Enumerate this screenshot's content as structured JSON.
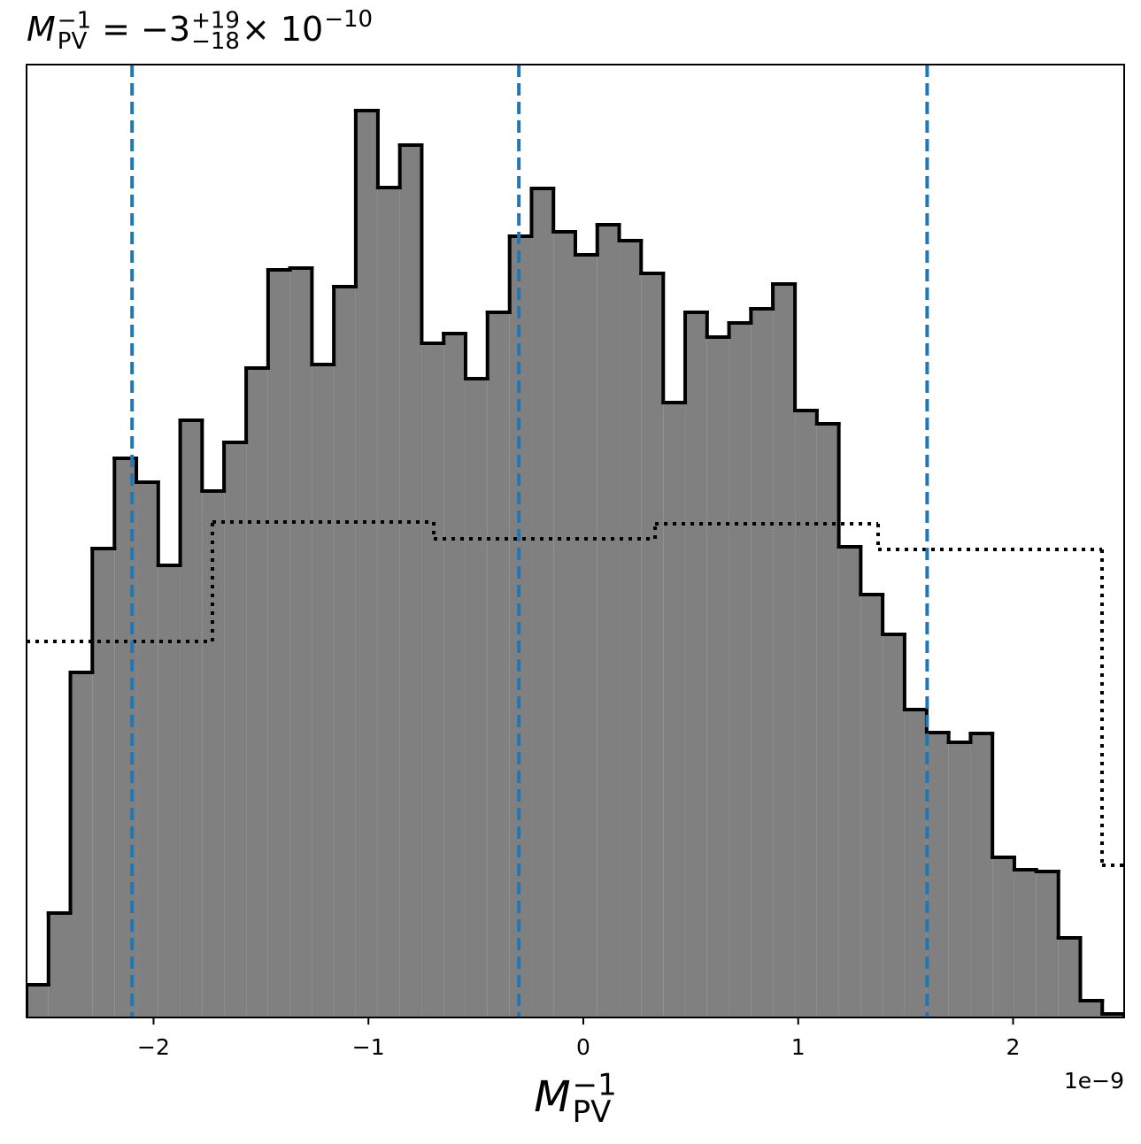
{
  "chart_data": {
    "type": "histogram",
    "title": {
      "symbol": "M",
      "sub": "PV",
      "sup": "−1",
      "value": "= −3",
      "upper": "+19",
      "lower": "−18",
      "times": "× 10",
      "exponent": "−10"
    },
    "xlabel": {
      "symbol": "M",
      "sub": "PV",
      "sup": "−1"
    },
    "x_offset_label": "1e−9",
    "bins": [
      -2.591,
      -2.489,
      -2.387,
      -2.285,
      -2.182,
      -2.08,
      -1.978,
      -1.876,
      -1.774,
      -1.672,
      -1.569,
      -1.467,
      -1.365,
      -1.263,
      -1.161,
      -1.059,
      -0.956,
      -0.854,
      -0.752,
      -0.65,
      -0.548,
      -0.446,
      -0.343,
      -0.241,
      -0.139,
      -0.037,
      0.065,
      0.167,
      0.269,
      0.372,
      0.474,
      0.576,
      0.678,
      0.78,
      0.882,
      0.985,
      1.087,
      1.189,
      1.291,
      1.393,
      1.495,
      1.598,
      1.7,
      1.802,
      1.904,
      2.006,
      2.108,
      2.211,
      2.313,
      2.415,
      2.517
    ],
    "values": [
      3.7,
      11.8,
      39,
      53,
      63.2,
      60.5,
      51.1,
      67.5,
      59.5,
      65,
      73.4,
      84.5,
      84.7,
      73.8,
      82.6,
      102.5,
      93.8,
      98.6,
      76.2,
      77.3,
      72.2,
      79.7,
      88.3,
      93.7,
      88.8,
      86.2,
      89.6,
      87.8,
      84.1,
      69.5,
      79.7,
      76.9,
      78.5,
      80.1,
      82.9,
      68.6,
      67.1,
      53.2,
      47.8,
      43.3,
      34.8,
      32.2,
      31.1,
      32.1,
      18.1,
      16.7,
      16.5,
      9,
      1.9,
      0.4
    ],
    "color": "#808080",
    "edge_color": "#000000",
    "prior_bins": [
      -2.591,
      -1.726,
      -0.696,
      0.334,
      1.372,
      2.414,
      2.517
    ],
    "prior_values": [
      42.5,
      56,
      54.1,
      55.8,
      52.9,
      17.2
    ],
    "quantiles": [
      -2.1,
      -0.3,
      1.6
    ],
    "quantile_color": "#1f77b4",
    "xlim": [
      -2.591,
      2.517
    ],
    "ylim": [
      0,
      107.7
    ],
    "xticks": [
      {
        "value": -2,
        "label": "−2"
      },
      {
        "value": -1,
        "label": "−1"
      },
      0,
      1,
      2
    ]
  }
}
